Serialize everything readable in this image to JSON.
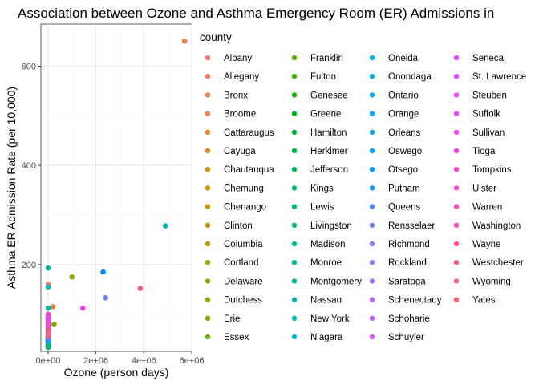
{
  "chart_data": {
    "type": "scatter",
    "title": "Association between Ozone and Asthma Emergency Room (ER) Admissions in",
    "xlabel": "Ozone (person days)",
    "ylabel": "Asthma ER Admission Rate (per 10,000)",
    "xlim": [
      -300000,
      6000000
    ],
    "ylim": [
      25,
      685
    ],
    "x_ticks": [
      0,
      2000000,
      4000000,
      6000000
    ],
    "x_tick_labels": [
      "0e+00",
      "2e+06",
      "4e+06",
      "6e+06"
    ],
    "y_ticks": [
      200,
      400,
      600
    ],
    "y_tick_labels": [
      "200",
      "400",
      "600"
    ],
    "grid": true,
    "legend": {
      "title": "county",
      "placement": "right",
      "columns": 4
    },
    "series": [
      {
        "name": "Albany",
        "color": "#F8766D",
        "x": 5000,
        "y": 160
      },
      {
        "name": "Allegany",
        "color": "#F47A5E",
        "x": 0,
        "y": 37
      },
      {
        "name": "Bronx",
        "color": "#EF7F4F",
        "x": 5700000,
        "y": 651
      },
      {
        "name": "Broome",
        "color": "#E98340",
        "x": 200000,
        "y": 115
      },
      {
        "name": "Cattaraugus",
        "color": "#E38730",
        "x": 0,
        "y": 38
      },
      {
        "name": "Cayuga",
        "color": "#DC8B20",
        "x": 0,
        "y": 40
      },
      {
        "name": "Chautauqua",
        "color": "#D48F0F",
        "x": 0,
        "y": 60
      },
      {
        "name": "Chemung",
        "color": "#CC9300",
        "x": 0,
        "y": 85
      },
      {
        "name": "Chenango",
        "color": "#C39600",
        "x": 0,
        "y": 45
      },
      {
        "name": "Clinton",
        "color": "#B99A00",
        "x": 0,
        "y": 50
      },
      {
        "name": "Columbia",
        "color": "#AF9D00",
        "x": 0,
        "y": 60
      },
      {
        "name": "Cortland",
        "color": "#A4A000",
        "x": 0,
        "y": 55
      },
      {
        "name": "Delaware",
        "color": "#98A300",
        "x": 0,
        "y": 35
      },
      {
        "name": "Dutchess",
        "color": "#8BA600",
        "x": 1000000,
        "y": 175
      },
      {
        "name": "Erie",
        "color": "#7CA900",
        "x": 250000,
        "y": 79
      },
      {
        "name": "Essex",
        "color": "#6CAB00",
        "x": 0,
        "y": 38
      },
      {
        "name": "Franklin",
        "color": "#59AD00",
        "x": 0,
        "y": 55
      },
      {
        "name": "Fulton",
        "color": "#41AF00",
        "x": 0,
        "y": 80
      },
      {
        "name": "Genesee",
        "color": "#1EB100",
        "x": 0,
        "y": 45
      },
      {
        "name": "Greene",
        "color": "#00B21A",
        "x": 0,
        "y": 50
      },
      {
        "name": "Hamilton",
        "color": "#00B335",
        "x": 0,
        "y": 33
      },
      {
        "name": "Herkimer",
        "color": "#00B448",
        "x": 0,
        "y": 60
      },
      {
        "name": "Jefferson",
        "color": "#00B559",
        "x": 0,
        "y": 65
      },
      {
        "name": "Kings",
        "color": "#00B668",
        "x": 0,
        "y": 45
      },
      {
        "name": "Lewis",
        "color": "#00B776",
        "x": 0,
        "y": 35
      },
      {
        "name": "Livingston",
        "color": "#00B883",
        "x": 0,
        "y": 40
      },
      {
        "name": "Madison",
        "color": "#00B890",
        "x": 0,
        "y": 45
      },
      {
        "name": "Monroe",
        "color": "#00B89C",
        "x": 0,
        "y": 193
      },
      {
        "name": "Montgomery",
        "color": "#00B8A8",
        "x": 0,
        "y": 112
      },
      {
        "name": "Nassau",
        "color": "#00B7B4",
        "x": 4900000,
        "y": 278
      },
      {
        "name": "New York",
        "color": "#00B6BF",
        "x": 0,
        "y": 155
      },
      {
        "name": "Niagara",
        "color": "#00B4CA",
        "x": 0,
        "y": 50
      },
      {
        "name": "Oneida",
        "color": "#00B2D5",
        "x": 0,
        "y": 48
      },
      {
        "name": "Onondaga",
        "color": "#00AFDF",
        "x": 0,
        "y": 45
      },
      {
        "name": "Ontario",
        "color": "#00ACE9",
        "x": 0,
        "y": 50
      },
      {
        "name": "Orange",
        "color": "#00A8F2",
        "x": 0,
        "y": 50
      },
      {
        "name": "Orleans",
        "color": "#00A3FB",
        "x": 0,
        "y": 48
      },
      {
        "name": "Oswego",
        "color": "#009EFF",
        "x": 0,
        "y": 52
      },
      {
        "name": "Otsego",
        "color": "#0098FF",
        "x": 0,
        "y": 48
      },
      {
        "name": "Putnam",
        "color": "#0091FF",
        "x": 2300000,
        "y": 185
      },
      {
        "name": "Queens",
        "color": "#4B8AFF",
        "x": 0,
        "y": 50
      },
      {
        "name": "Rensselaer",
        "color": "#6D83FF",
        "x": 2400000,
        "y": 133
      },
      {
        "name": "Richmond",
        "color": "#867AFF",
        "x": 0,
        "y": 55
      },
      {
        "name": "Rockland",
        "color": "#9A72FF",
        "x": 0,
        "y": 60
      },
      {
        "name": "Saratoga",
        "color": "#AB6AFF",
        "x": 0,
        "y": 70
      },
      {
        "name": "Schenectady",
        "color": "#B962FF",
        "x": 0,
        "y": 80
      },
      {
        "name": "Schoharie",
        "color": "#C55BFF",
        "x": 0,
        "y": 85
      },
      {
        "name": "Schuyler",
        "color": "#CF55FF",
        "x": 0,
        "y": 88
      },
      {
        "name": "Seneca",
        "color": "#D950FF",
        "x": 0,
        "y": 90
      },
      {
        "name": "St. Lawrence",
        "color": "#E14BFF",
        "x": 0,
        "y": 92
      },
      {
        "name": "Steuben",
        "color": "#E848FA",
        "x": 0,
        "y": 95
      },
      {
        "name": "Suffolk",
        "color": "#EE45F2",
        "x": 1450000,
        "y": 112
      },
      {
        "name": "Sullivan",
        "color": "#F343E9",
        "x": 0,
        "y": 95
      },
      {
        "name": "Tioga",
        "color": "#F643DF",
        "x": 0,
        "y": 75
      },
      {
        "name": "Tompkins",
        "color": "#F944D4",
        "x": 0,
        "y": 85
      },
      {
        "name": "Ulster",
        "color": "#FB46C8",
        "x": 0,
        "y": 100
      },
      {
        "name": "Warren",
        "color": "#FC49BC",
        "x": 0,
        "y": 60
      },
      {
        "name": "Washington",
        "color": "#FD4DAF",
        "x": 0,
        "y": 65
      },
      {
        "name": "Wayne",
        "color": "#FD52A2",
        "x": 0,
        "y": 70
      },
      {
        "name": "Westchester",
        "color": "#FD5694",
        "x": 3850000,
        "y": 152
      },
      {
        "name": "Wyoming",
        "color": "#FC5B86",
        "x": 0,
        "y": 55
      },
      {
        "name": "Yates",
        "color": "#FA6077",
        "x": 0,
        "y": 65
      }
    ]
  }
}
